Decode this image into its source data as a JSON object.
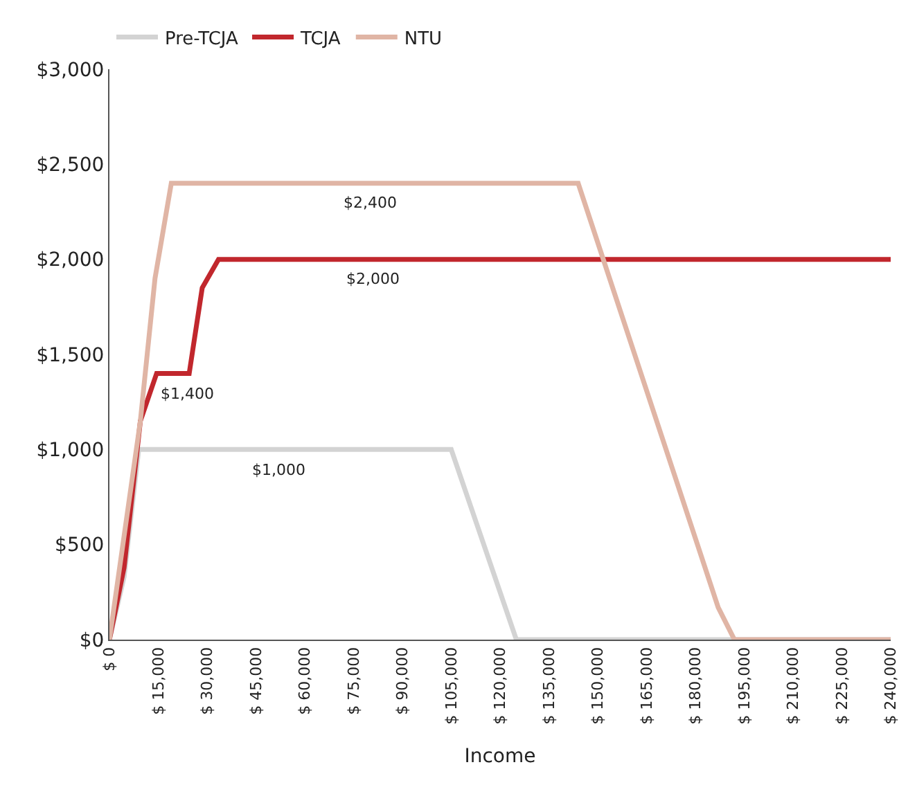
{
  "chart_data": {
    "type": "line",
    "xlabel": "Income",
    "legend": "top left",
    "grid": false,
    "marker": "none",
    "line_style": "solid",
    "xlim": [
      0,
      240000
    ],
    "xticks": [
      {
        "value": 0,
        "label": "$ 0"
      },
      {
        "value": 15000,
        "label": "$ 15,000"
      },
      {
        "value": 30000,
        "label": "$ 30,000"
      },
      {
        "value": 45000,
        "label": "$ 45,000"
      },
      {
        "value": 60000,
        "label": "$ 60,000"
      },
      {
        "value": 75000,
        "label": "$ 75,000"
      },
      {
        "value": 90000,
        "label": "$ 90,000"
      },
      {
        "value": 105000,
        "label": "$ 105,000"
      },
      {
        "value": 120000,
        "label": "$ 120,000"
      },
      {
        "value": 135000,
        "label": "$ 135,000"
      },
      {
        "value": 150000,
        "label": "$ 150,000"
      },
      {
        "value": 165000,
        "label": "$ 165,000"
      },
      {
        "value": 180000,
        "label": "$ 180,000"
      },
      {
        "value": 195000,
        "label": "$ 195,000"
      },
      {
        "value": 210000,
        "label": "$ 210,000"
      },
      {
        "value": 225000,
        "label": "$ 225,000"
      },
      {
        "value": 240000,
        "label": "$ 240,000"
      }
    ],
    "ylim": [
      0,
      3000
    ],
    "yticks": [
      {
        "value": 0,
        "label": "$0"
      },
      {
        "value": 500,
        "label": "$500"
      },
      {
        "value": 1000,
        "label": "$1,000"
      },
      {
        "value": 1500,
        "label": "$1,500"
      },
      {
        "value": 2000,
        "label": "$2,000"
      },
      {
        "value": 2500,
        "label": "$2,500"
      },
      {
        "value": 3000,
        "label": "$3,000"
      }
    ],
    "series": [
      {
        "name": "Pre-TCJA",
        "color": "#d3d3d3",
        "x": [
          0,
          4500,
          9000,
          105000,
          125000,
          240000
        ],
        "values": [
          0,
          330,
          1000,
          1000,
          0,
          0
        ]
      },
      {
        "name": "TCJA",
        "color": "#c1272d",
        "x": [
          0,
          4500,
          9500,
          14500,
          24500,
          28500,
          33500,
          240000
        ],
        "values": [
          0,
          380,
          1150,
          1400,
          1400,
          1850,
          2000,
          2000
        ]
      },
      {
        "name": "NTU",
        "color": "#e0b5a5",
        "x": [
          0,
          9500,
          14000,
          19000,
          144000,
          187000,
          192000,
          240000
        ],
        "values": [
          0,
          1150,
          1900,
          2400,
          2400,
          170,
          0,
          0
        ]
      }
    ],
    "annotations": [
      {
        "text": "$2,400",
        "x": 80000,
        "y": 2400
      },
      {
        "text": "$2,000",
        "x": 81000,
        "y": 2000
      },
      {
        "text": "$1,400",
        "x": 24000,
        "y": 1400
      },
      {
        "text": "$1,000",
        "x": 52000,
        "y": 1000
      }
    ]
  }
}
